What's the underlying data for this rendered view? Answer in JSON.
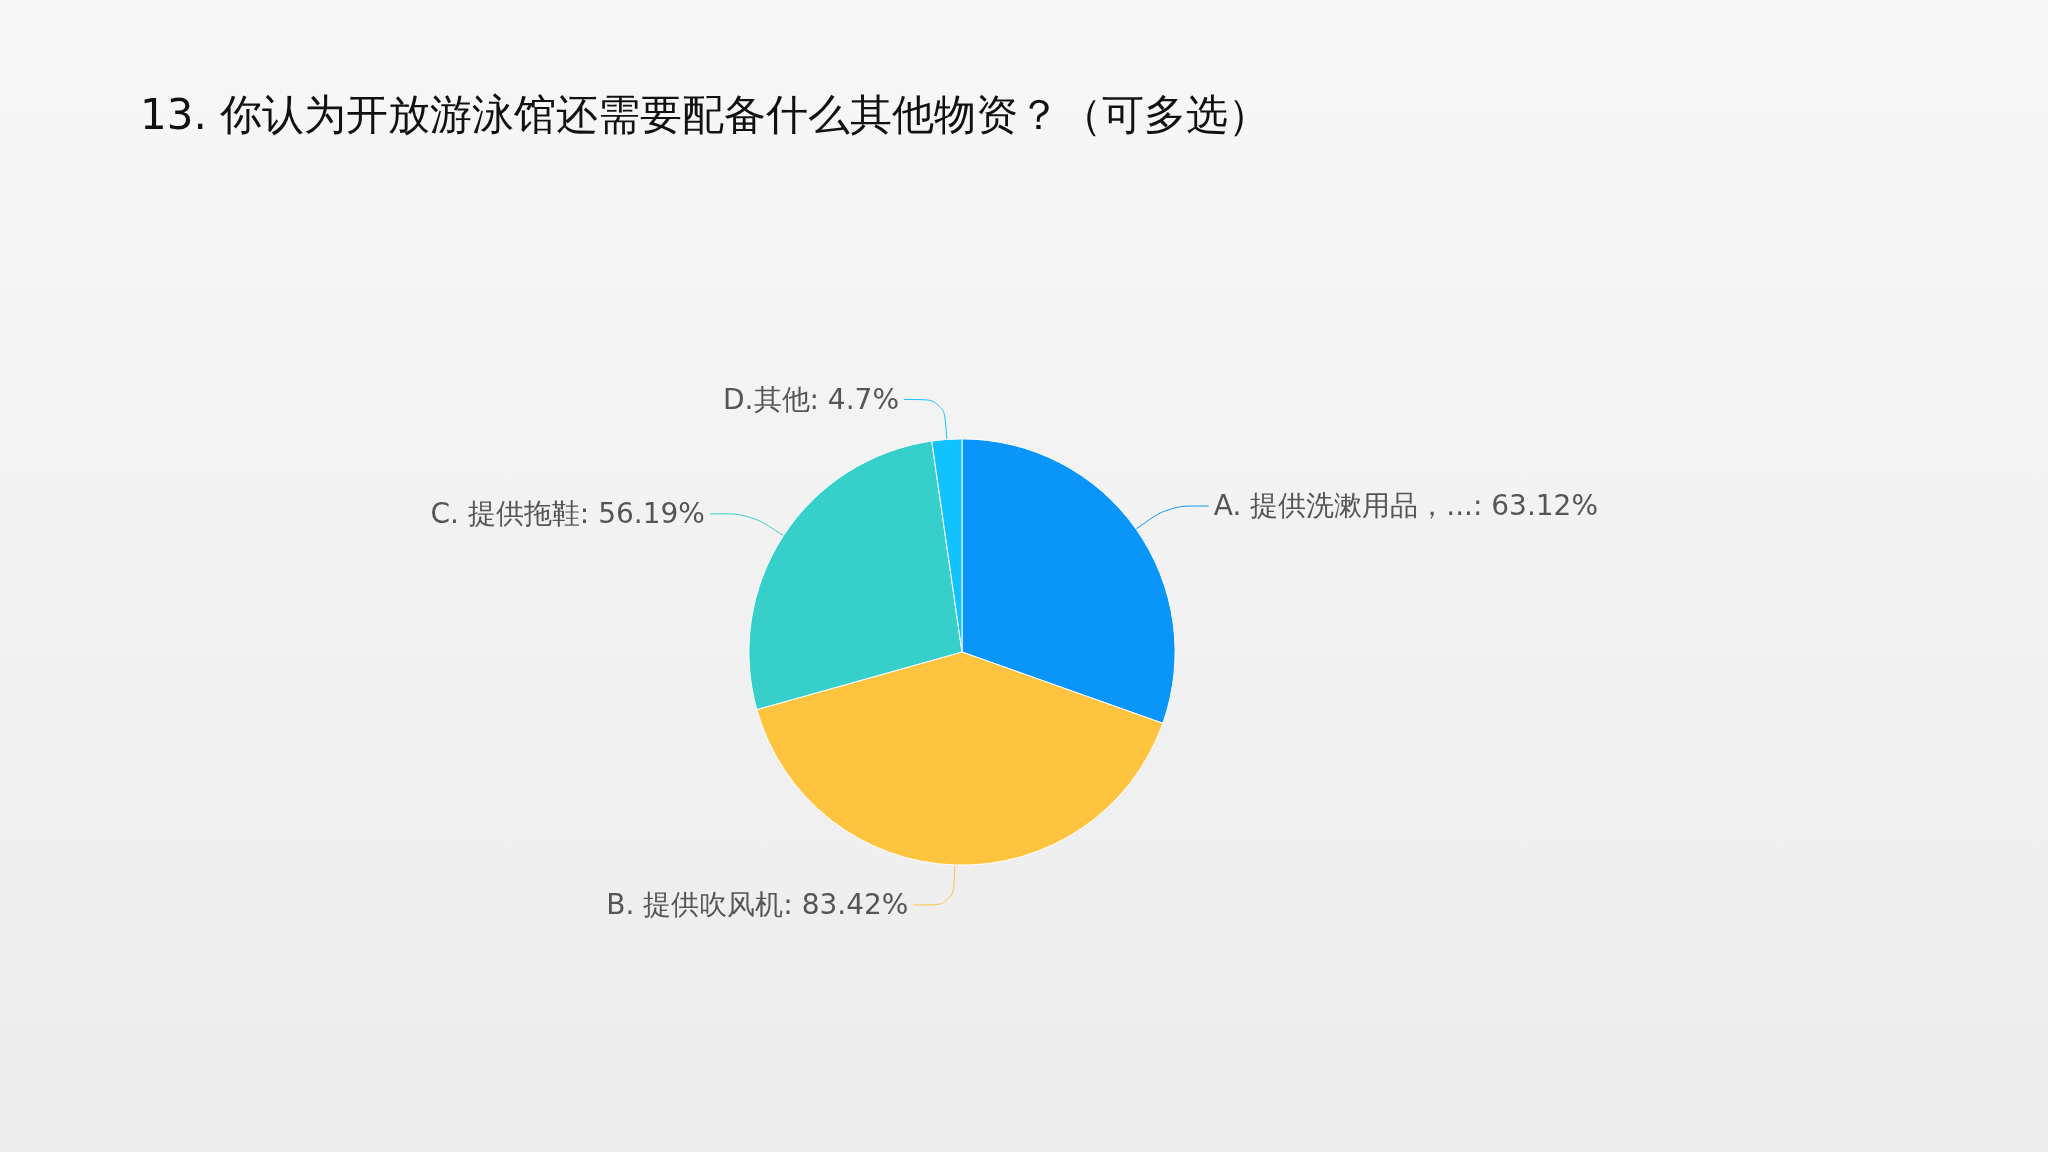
{
  "chart_data": {
    "type": "pie",
    "title": "13. 你认为开放游泳馆还需要配备什么其他物资？（可多选）",
    "categories": [
      "A. 提供洗漱用品，...",
      "B. 提供吹风机",
      "C. 提供拖鞋",
      "D.其他"
    ],
    "values": [
      63.12,
      83.42,
      56.19,
      4.7
    ],
    "value_labels": [
      "63.12%",
      "83.42%",
      "56.19%",
      "4.7%"
    ],
    "colors": [
      "#0a95fb",
      "#fec43f",
      "#36cfc9",
      "#12c2ff"
    ],
    "legend": false
  }
}
